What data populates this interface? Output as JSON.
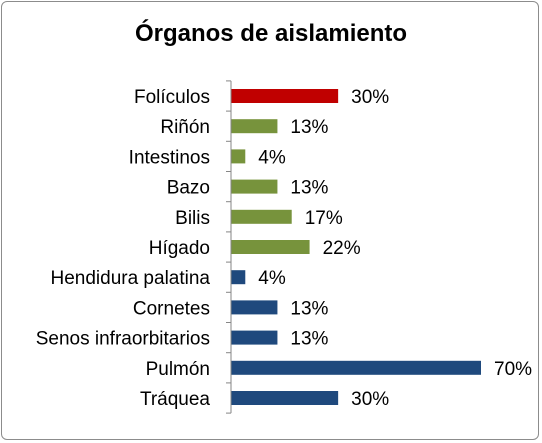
{
  "chart_data": {
    "type": "bar",
    "orientation": "horizontal",
    "title": "Órganos de aislamiento",
    "categories": [
      "Folículos",
      "Riñón",
      "Intestinos",
      "Bazo",
      "Bilis",
      "Hígado",
      "Hendidura palatina",
      "Cornetes",
      "Senos infraorbitarios",
      "Pulmón",
      "Tráquea"
    ],
    "values": [
      30,
      13,
      4,
      13,
      17,
      22,
      4,
      13,
      13,
      70,
      30
    ],
    "data_labels": [
      "30%",
      "13%",
      "4%",
      "13%",
      "17%",
      "22%",
      "4%",
      "13%",
      "13%",
      "70%",
      "30%"
    ],
    "colors": [
      "#c00000",
      "#77933c",
      "#77933c",
      "#77933c",
      "#77933c",
      "#77933c",
      "#1f497d",
      "#1f497d",
      "#1f497d",
      "#1f497d",
      "#1f497d"
    ],
    "xlim": [
      0,
      70
    ],
    "grid": false,
    "legend": "none"
  }
}
